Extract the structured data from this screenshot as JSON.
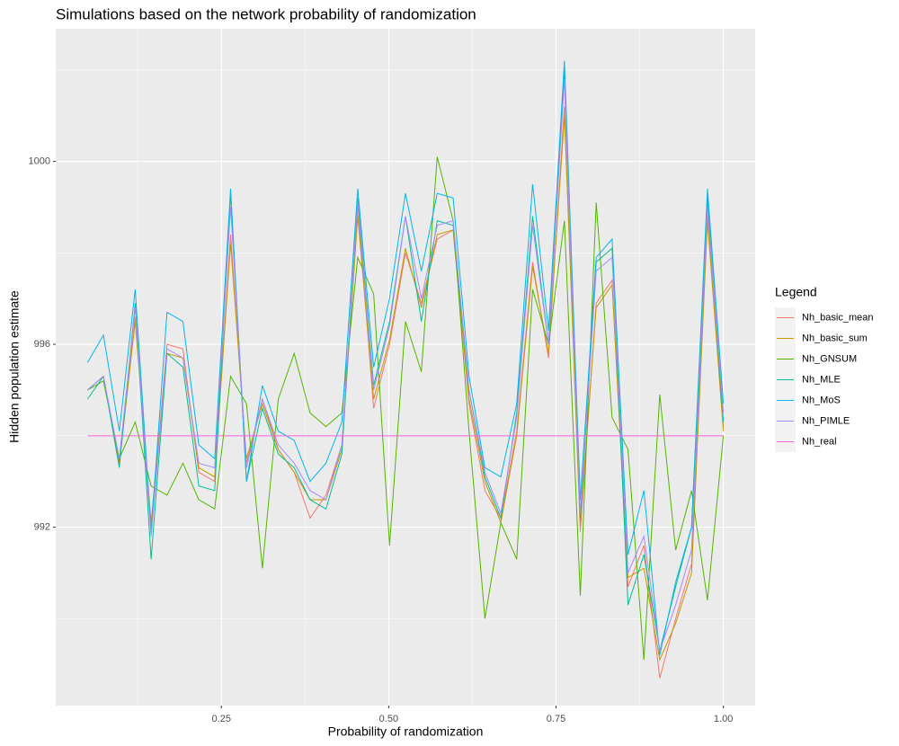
{
  "chart_data": {
    "type": "line",
    "title": "Simulations based on the network probability of randomization",
    "x_label": "Probability of randomization",
    "y_label": "Hidden population estimate",
    "legend_title": "Legend",
    "legend_position": "right",
    "grid": true,
    "xlim": [
      0.0025,
      1.0475
    ],
    "xticks": [
      {
        "value": 0.25,
        "label": "0.25"
      },
      {
        "value": 0.5,
        "label": "0.50"
      },
      {
        "value": 0.75,
        "label": "0.75"
      },
      {
        "value": 1.0,
        "label": "1.00"
      }
    ],
    "x_minor_ticks": [
      0.125,
      0.375,
      0.625,
      0.875
    ],
    "ylim": [
      988.1,
      1002.9
    ],
    "yticks": [
      992,
      996,
      1000
    ],
    "y_minor_ticks": [
      990,
      994,
      998,
      1002
    ],
    "x": [
      0.05,
      0.07375,
      0.0975,
      0.12125,
      0.145,
      0.16875,
      0.1925,
      0.21625,
      0.24,
      0.26375,
      0.2875,
      0.31125,
      0.335,
      0.35875,
      0.3825,
      0.40625,
      0.43,
      0.45375,
      0.4775,
      0.50125,
      0.525,
      0.54875,
      0.5725,
      0.59625,
      0.62,
      0.64375,
      0.6675,
      0.69125,
      0.715,
      0.73875,
      0.7625,
      0.78625,
      0.81,
      0.83375,
      0.8575,
      0.88125,
      0.905,
      0.92875,
      0.9525,
      0.97625,
      1.0
    ],
    "series": [
      {
        "name": "Nh_basic_mean",
        "color": "#F8766D",
        "values": [
          995.0,
          995.3,
          993.4,
          996.6,
          992.0,
          996.0,
          995.9,
          993.2,
          993.0,
          998.4,
          993.4,
          994.8,
          993.7,
          993.2,
          992.2,
          992.7,
          993.8,
          999.0,
          994.6,
          996.0,
          998.0,
          996.9,
          998.3,
          998.5,
          994.7,
          992.8,
          992.2,
          994.1,
          997.8,
          995.7,
          1001.2,
          991.9,
          996.9,
          997.4,
          990.7,
          991.6,
          988.7,
          990.0,
          991.2,
          998.8,
          994.2
        ]
      },
      {
        "name": "Nh_basic_sum",
        "color": "#C49A00",
        "values": [
          995.0,
          995.3,
          993.4,
          996.5,
          992.1,
          995.8,
          995.7,
          993.3,
          993.1,
          998.2,
          993.5,
          994.7,
          993.7,
          993.2,
          992.6,
          992.6,
          993.7,
          998.8,
          994.8,
          996.1,
          998.1,
          996.8,
          998.4,
          998.5,
          994.8,
          993.0,
          992.1,
          994.0,
          997.7,
          995.8,
          1001.0,
          992.1,
          996.8,
          997.3,
          990.9,
          991.1,
          989.1,
          989.9,
          991.0,
          998.7,
          994.1
        ]
      },
      {
        "name": "Nh_GNSUM",
        "color": "#53B400",
        "values": [
          995.0,
          995.2,
          993.5,
          994.3,
          992.9,
          992.7,
          993.4,
          992.6,
          992.4,
          995.3,
          994.7,
          991.1,
          994.8,
          995.8,
          994.5,
          994.2,
          994.5,
          997.9,
          997.1,
          991.6,
          996.5,
          995.4,
          1000.1,
          998.7,
          994.1,
          990.0,
          992.1,
          991.3,
          997.2,
          996.0,
          998.7,
          990.5,
          999.1,
          994.4,
          993.7,
          989.1,
          994.9,
          991.5,
          992.8,
          990.4,
          994.0
        ]
      },
      {
        "name": "Nh_MLE",
        "color": "#00C094",
        "values": [
          994.8,
          995.3,
          993.3,
          996.9,
          991.3,
          995.8,
          995.5,
          992.9,
          992.8,
          999.3,
          993.0,
          994.6,
          993.6,
          993.3,
          992.6,
          992.4,
          993.6,
          999.2,
          995.1,
          996.5,
          998.8,
          996.5,
          998.7,
          998.6,
          995.0,
          993.1,
          992.2,
          994.5,
          998.8,
          996.0,
          1002.0,
          992.2,
          997.8,
          998.1,
          990.3,
          991.4,
          989.3,
          990.7,
          992.0,
          999.2,
          994.3
        ]
      },
      {
        "name": "Nh_MoS",
        "color": "#00B6EB",
        "values": [
          995.6,
          996.2,
          994.1,
          997.2,
          991.9,
          996.7,
          996.5,
          993.8,
          993.5,
          999.4,
          993.0,
          995.1,
          994.1,
          993.9,
          993.0,
          993.4,
          994.3,
          999.4,
          995.5,
          997.0,
          999.3,
          997.6,
          999.3,
          999.2,
          995.3,
          993.3,
          993.1,
          994.7,
          999.5,
          996.3,
          1002.2,
          992.6,
          997.9,
          998.3,
          991.4,
          992.8,
          989.2,
          990.8,
          992.0,
          999.4,
          994.7
        ]
      },
      {
        "name": "Nh_PIMLE",
        "color": "#A58AFF",
        "values": [
          995.0,
          995.3,
          993.5,
          996.8,
          991.8,
          995.9,
          995.7,
          993.4,
          993.3,
          999.0,
          993.3,
          994.8,
          993.8,
          993.4,
          992.8,
          992.6,
          993.8,
          999.1,
          995.0,
          996.4,
          998.8,
          997.0,
          998.6,
          998.7,
          995.0,
          993.2,
          992.3,
          994.4,
          998.6,
          996.0,
          1001.8,
          992.3,
          997.6,
          997.9,
          991.0,
          991.8,
          989.3,
          990.3,
          991.5,
          999.0,
          994.5
        ]
      },
      {
        "name": "Nh_real",
        "color": "#FB61D7",
        "values": [
          994,
          994,
          994,
          994,
          994,
          994,
          994,
          994,
          994,
          994,
          994,
          994,
          994,
          994,
          994,
          994,
          994,
          994,
          994,
          994,
          994,
          994,
          994,
          994,
          994,
          994,
          994,
          994,
          994,
          994,
          994,
          994,
          994,
          994,
          994,
          994,
          994,
          994,
          994,
          994,
          994
        ]
      }
    ]
  }
}
